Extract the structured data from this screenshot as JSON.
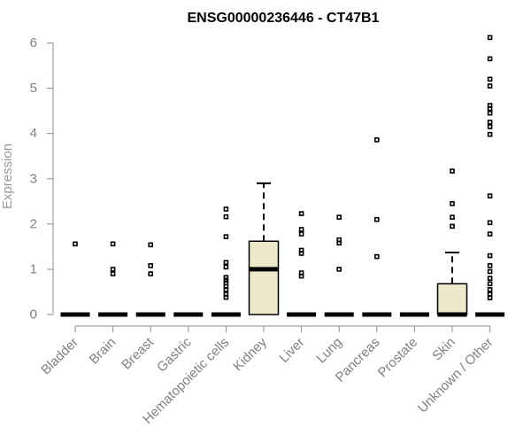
{
  "chart_data": {
    "type": "box",
    "title": "ENSG00000236446 - CT47B1",
    "xlabel": "",
    "ylabel": "Expression",
    "ylim": [
      0,
      6.2
    ],
    "yticks": [
      0,
      1,
      2,
      3,
      4,
      5,
      6
    ],
    "grid": false,
    "box_fill": "#eee8cd",
    "categories": [
      "Bladder",
      "Brain",
      "Breast",
      "Gastric",
      "Hematopoietic cells",
      "Kidney",
      "Liver",
      "Lung",
      "Pancreas",
      "Prostate",
      "Skin",
      "Unknown / Other"
    ],
    "boxes": [
      {
        "q1": 0,
        "median": 0,
        "q3": 0,
        "whisker_low": 0,
        "whisker_high": 0,
        "outliers": [
          1.56
        ]
      },
      {
        "q1": 0,
        "median": 0,
        "q3": 0,
        "whisker_low": 0,
        "whisker_high": 0,
        "outliers": [
          1.56,
          1.0,
          0.9
        ]
      },
      {
        "q1": 0,
        "median": 0,
        "q3": 0,
        "whisker_low": 0,
        "whisker_high": 0,
        "outliers": [
          1.54,
          1.08,
          0.9
        ]
      },
      {
        "q1": 0,
        "median": 0,
        "q3": 0,
        "whisker_low": 0,
        "whisker_high": 0,
        "outliers": []
      },
      {
        "q1": 0,
        "median": 0,
        "q3": 0,
        "whisker_low": 0,
        "whisker_high": 0,
        "outliers": [
          2.33,
          2.16,
          1.72,
          1.15,
          1.05,
          0.82,
          0.76,
          0.7,
          0.62,
          0.55,
          0.45,
          0.38
        ]
      },
      {
        "q1": 0,
        "median": 1.0,
        "q3": 1.62,
        "whisker_low": 0,
        "whisker_high": 2.9,
        "outliers": []
      },
      {
        "q1": 0,
        "median": 0,
        "q3": 0,
        "whisker_low": 0,
        "whisker_high": 0,
        "outliers": [
          2.23,
          1.88,
          1.78,
          1.42,
          1.35,
          0.92,
          0.85
        ]
      },
      {
        "q1": 0,
        "median": 0,
        "q3": 0,
        "whisker_low": 0,
        "whisker_high": 0,
        "outliers": [
          2.15,
          1.65,
          1.58,
          1.0
        ]
      },
      {
        "q1": 0,
        "median": 0,
        "q3": 0,
        "whisker_low": 0,
        "whisker_high": 0,
        "outliers": [
          3.86,
          2.1,
          1.28
        ]
      },
      {
        "q1": 0,
        "median": 0,
        "q3": 0,
        "whisker_low": 0,
        "whisker_high": 0,
        "outliers": []
      },
      {
        "q1": 0,
        "median": 0,
        "q3": 0.68,
        "whisker_low": 0,
        "whisker_high": 1.37,
        "outliers": [
          3.17,
          2.45,
          2.15,
          1.95
        ]
      },
      {
        "q1": 0,
        "median": 0,
        "q3": 0,
        "whisker_low": 0,
        "whisker_high": 0,
        "outliers": [
          6.12,
          5.65,
          5.2,
          5.05,
          4.62,
          4.55,
          4.45,
          4.25,
          4.15,
          3.98,
          2.62,
          2.03,
          1.78,
          1.3,
          1.08,
          0.95,
          0.8,
          0.68,
          0.55,
          0.45,
          0.37
        ]
      }
    ]
  }
}
